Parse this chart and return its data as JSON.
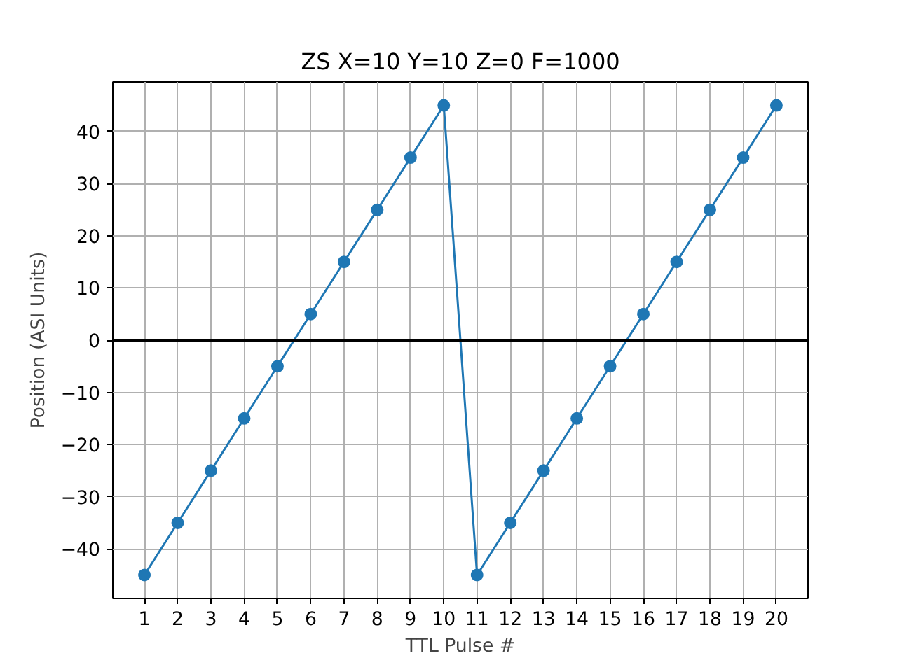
{
  "chart_data": {
    "type": "line",
    "title": "ZS X=10 Y=10 Z=0 F=1000",
    "xlabel": "TTL Pulse #",
    "ylabel": "Position (ASI Units)",
    "x": [
      1,
      2,
      3,
      4,
      5,
      6,
      7,
      8,
      9,
      10,
      11,
      12,
      13,
      14,
      15,
      16,
      17,
      18,
      19,
      20
    ],
    "series": [
      {
        "color": "#1f77b4",
        "values": [
          -45,
          -35,
          -25,
          -15,
          -5,
          5,
          15,
          25,
          35,
          45,
          -45,
          -35,
          -25,
          -15,
          -5,
          5,
          15,
          25,
          35,
          45
        ]
      }
    ],
    "xlim": [
      0.05,
      20.95
    ],
    "ylim": [
      -49.5,
      49.5
    ],
    "xticks": [
      1,
      2,
      3,
      4,
      5,
      6,
      7,
      8,
      9,
      10,
      11,
      12,
      13,
      14,
      15,
      16,
      17,
      18,
      19,
      20
    ],
    "yticks": [
      {
        "value": -40,
        "label": "−40"
      },
      {
        "value": -30,
        "label": "−30"
      },
      {
        "value": -20,
        "label": "−20"
      },
      {
        "value": -10,
        "label": "−10"
      },
      0,
      10,
      20,
      30,
      40
    ],
    "grid": true,
    "marker": "circle",
    "line_style": "solid",
    "ref_lines": [
      {
        "axis": "y",
        "value": 0,
        "color": "#000000"
      }
    ]
  }
}
